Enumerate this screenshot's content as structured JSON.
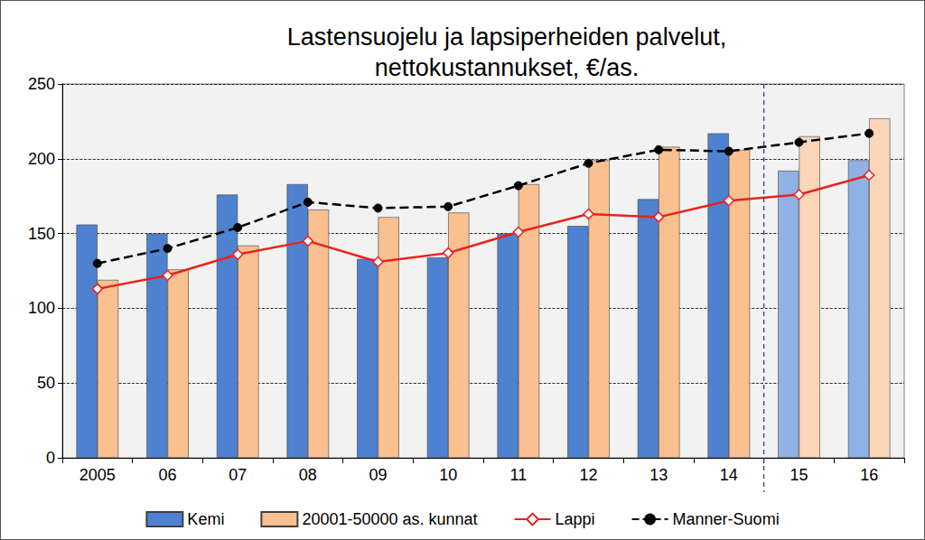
{
  "chart_data": {
    "type": "bar",
    "title": "Lastensuojelu ja lapsiperheiden palvelut,\nnettokustannukset, €/as.",
    "categories": [
      "2005",
      "06",
      "07",
      "08",
      "09",
      "10",
      "11",
      "12",
      "13",
      "14",
      "15",
      "16"
    ],
    "series": [
      {
        "name": "Kemi",
        "type": "bar",
        "color": "#4f81d1",
        "colors": [
          "#4f81d1",
          "#4f81d1",
          "#4f81d1",
          "#4f81d1",
          "#4f81d1",
          "#4f81d1",
          "#4f81d1",
          "#4f81d1",
          "#4f81d1",
          "#4f81d1",
          "#8fb1e6",
          "#8fb1e6"
        ],
        "values": [
          156,
          150,
          176,
          183,
          133,
          134,
          150,
          155,
          173,
          217,
          192,
          199
        ]
      },
      {
        "name": "20001-50000 as. kunnat",
        "type": "bar",
        "color": "#fac090",
        "colors": [
          "#fac090",
          "#fac090",
          "#fac090",
          "#fac090",
          "#fac090",
          "#fac090",
          "#fac090",
          "#fac090",
          "#fac090",
          "#fac090",
          "#fcd6b8",
          "#fcd6b8"
        ],
        "values": [
          119,
          126,
          142,
          166,
          161,
          164,
          183,
          199,
          208,
          206,
          215,
          227
        ]
      },
      {
        "name": "Lappi",
        "type": "line",
        "color": "#e8231c",
        "marker": "diamond",
        "line_style": "solid",
        "values": [
          113,
          122,
          136,
          145,
          131,
          137,
          151,
          163,
          161,
          172,
          176,
          189
        ]
      },
      {
        "name": "Manner-Suomi",
        "type": "line",
        "color": "#000000",
        "marker": "circle",
        "line_style": "dashed",
        "values": [
          130,
          140,
          154,
          171,
          167,
          168,
          182,
          197,
          206,
          205,
          211,
          217
        ]
      }
    ],
    "ylim": [
      0,
      250
    ],
    "yticks": [
      0,
      50,
      100,
      150,
      200,
      250
    ],
    "grid": true,
    "legend": "bottom"
  }
}
